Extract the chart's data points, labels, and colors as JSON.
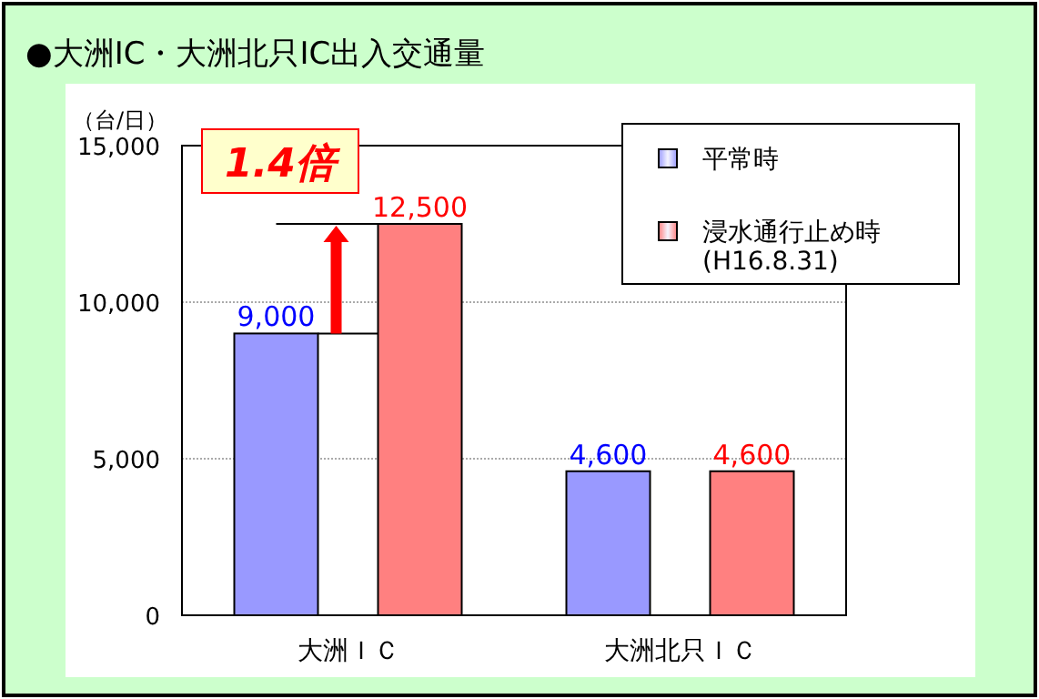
{
  "chart_data": {
    "type": "bar",
    "title": "●大洲IC・大洲北只IC出入交通量",
    "ylabel": "（台/日）",
    "categories": [
      "大洲ＩＣ",
      "大洲北只ＩＣ"
    ],
    "series": [
      {
        "name": "平常時",
        "color": "#9999ff",
        "values": [
          9000,
          4600
        ],
        "value_labels": [
          "9,000",
          "4,600"
        ]
      },
      {
        "name": "浸水通行止め時\n(H16.8.31)",
        "color": "#ff8080",
        "values": [
          12500,
          4600
        ],
        "value_labels": [
          "12,500",
          "4,600"
        ]
      }
    ],
    "ylim": [
      0,
      15000
    ],
    "yticks": [
      {
        "value": 0,
        "label": "0"
      },
      {
        "value": 5000,
        "label": "5,000"
      },
      {
        "value": 10000,
        "label": "10,000"
      },
      {
        "value": 15000,
        "label": "15,000"
      }
    ],
    "grid": "y",
    "legend": "top right",
    "annotations": [
      "1.4倍"
    ]
  }
}
